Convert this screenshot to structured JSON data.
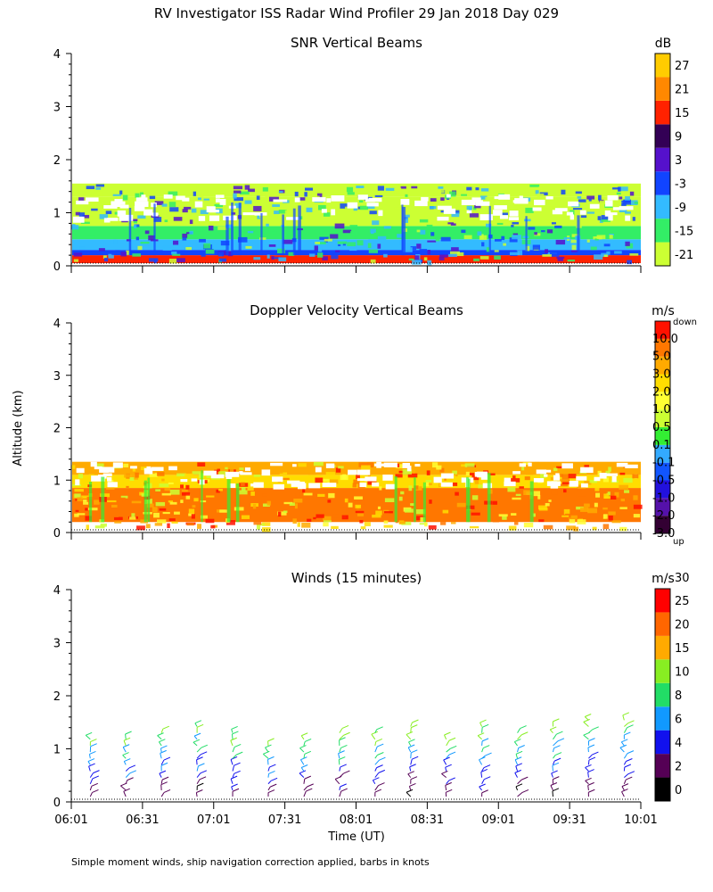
{
  "chart_data": [
    {
      "type": "heatmap",
      "suptitle": "RV Investigator ISS Radar Wind Profiler  29 Jan 2018 Day 029",
      "title": "SNR Vertical Beams",
      "unit": "dB",
      "xlabel": "",
      "ylabel": "",
      "ylim": [
        0,
        4
      ],
      "yticks": [
        "0",
        "1",
        "2",
        "3",
        "4"
      ],
      "xlim_minutes_since_06_01": [
        0,
        240
      ],
      "colorbar": {
        "labels": [
          "-21",
          "-15",
          "-9",
          "-3",
          "3",
          "9",
          "15",
          "21",
          "27"
        ],
        "colors": [
          "#ccff33",
          "#33ee66",
          "#33bbff",
          "#1144ff",
          "#5511cc",
          "#330055",
          "#ff2200",
          "#ff8800",
          "#ffcc00"
        ]
      },
      "layers": [
        {
          "min_km": 0.05,
          "max_km": 0.2,
          "color": "#ff2200"
        },
        {
          "min_km": 0.2,
          "max_km": 0.3,
          "color": "#1144ff"
        },
        {
          "min_km": 0.3,
          "max_km": 0.5,
          "color": "#33bbff"
        },
        {
          "min_km": 0.5,
          "max_km": 0.75,
          "color": "#33ee66"
        },
        {
          "min_km": 0.75,
          "max_km": 1.3,
          "color": "#ccff33"
        },
        {
          "min_km": 1.3,
          "max_km": 1.55,
          "color": "#ccff33"
        }
      ]
    },
    {
      "type": "heatmap",
      "title": "Doppler Velocity Vertical Beams",
      "unit": "m/s",
      "xlabel": "",
      "ylabel": "Altitude (km)",
      "ylim": [
        0,
        4
      ],
      "yticks": [
        "0",
        "1",
        "2",
        "3",
        "4"
      ],
      "xlim_minutes_since_06_01": [
        0,
        240
      ],
      "colorbar": {
        "top_note": "down",
        "bottom_note": "up",
        "labels": [
          "10.0",
          "5.0",
          "3.0",
          "2.0",
          "1.0",
          "0.5",
          "0.1",
          "-0.1",
          "-0.5",
          "-1.0",
          "-2.0",
          "-3.0"
        ],
        "colors": [
          "#330033",
          "#5511aa",
          "#2211dd",
          "#1155ff",
          "#33aaff",
          "#33ee33",
          "#ccff33",
          "#ffff33",
          "#ffdd00",
          "#ffaa00",
          "#ff7700",
          "#ff1100"
        ]
      },
      "layers": [
        {
          "min_km": 0.2,
          "max_km": 0.85,
          "color": "#ff7700"
        },
        {
          "min_km": 0.85,
          "max_km": 1.1,
          "color": "#ffdd00"
        },
        {
          "min_km": 1.1,
          "max_km": 1.35,
          "color": "#ffaa00"
        }
      ]
    },
    {
      "type": "scatter",
      "title": "Winds (15 minutes)",
      "unit": "m/s",
      "xlabel": "Time (UT)",
      "ylabel": "",
      "ylim": [
        0,
        4
      ],
      "yticks": [
        "0",
        "1",
        "2",
        "3",
        "4"
      ],
      "xticks": [
        "06:01",
        "06:31",
        "07:01",
        "07:31",
        "08:01",
        "08:31",
        "09:01",
        "09:31",
        "10:01"
      ],
      "xlim_minutes_since_06_01": [
        0,
        240
      ],
      "colorbar": {
        "labels": [
          "0",
          "2",
          "4",
          "6",
          "8",
          "10",
          "15",
          "20",
          "25",
          "30"
        ],
        "colors": [
          "#000000",
          "#550055",
          "#1111ee",
          "#1199ff",
          "#22dd66",
          "#88ee22",
          "#ffaa00",
          "#ff6600",
          "#ff0000"
        ]
      },
      "wind_columns_minutes": [
        8,
        23,
        38,
        53,
        68,
        83,
        98,
        113,
        128,
        143,
        158,
        173,
        188,
        203,
        218,
        233
      ],
      "wind_top_km": [
        1.25,
        1.3,
        1.35,
        1.5,
        1.4,
        1.1,
        1.3,
        1.35,
        1.4,
        1.45,
        1.3,
        1.5,
        1.4,
        1.5,
        1.55,
        1.55
      ]
    }
  ],
  "footer_note": "Simple moment winds, ship navigation correction applied, barbs in knots"
}
